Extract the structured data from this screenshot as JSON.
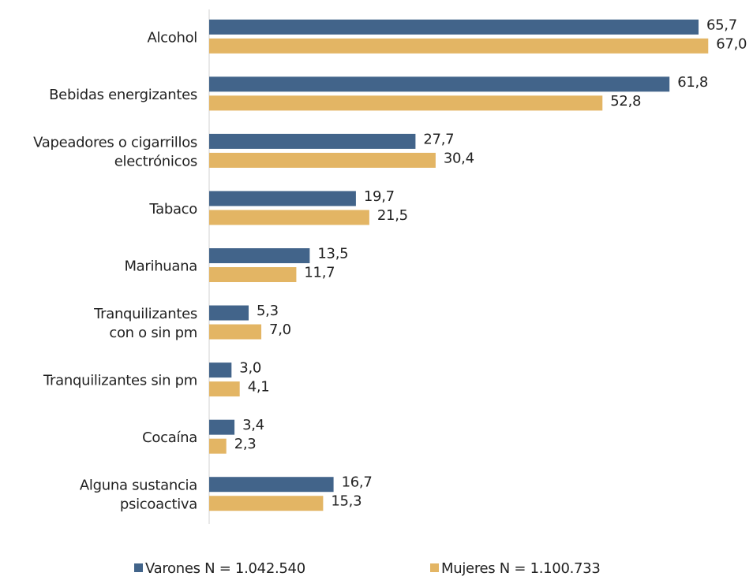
{
  "chart_data": {
    "type": "hbar",
    "categories": [
      "Alcohol",
      "Bebidas energizantes",
      "Vapeadores o cigarrillos\nelectrónicos",
      "Tabaco",
      "Marihuana",
      "Tranquilizantes\ncon o sin pm",
      "Tranquilizantes sin pm",
      "Cocaína",
      "Alguna sustancia\npsicoactiva"
    ],
    "series": [
      {
        "name": "Varones N = 1.042.540",
        "color": "#42648a",
        "values": [
          65.7,
          61.8,
          27.7,
          19.7,
          13.5,
          5.3,
          3.0,
          3.4,
          16.7
        ],
        "value_labels": [
          "65,7",
          "61,8",
          "27,7",
          "19,7",
          "13,5",
          "5,3",
          "3,0",
          "3,4",
          "16,7"
        ]
      },
      {
        "name": "Mujeres N = 1.100.733",
        "color": "#e3b564",
        "values": [
          67.0,
          52.8,
          30.4,
          21.5,
          11.7,
          7.0,
          4.1,
          2.3,
          15.3
        ],
        "value_labels": [
          "67,0",
          "52,8",
          "30,4",
          "21,5",
          "11,7",
          "7,0",
          "4,1",
          "2,3",
          "15,3"
        ]
      }
    ],
    "xlim": [
      0,
      70
    ],
    "legend": "bottom"
  }
}
